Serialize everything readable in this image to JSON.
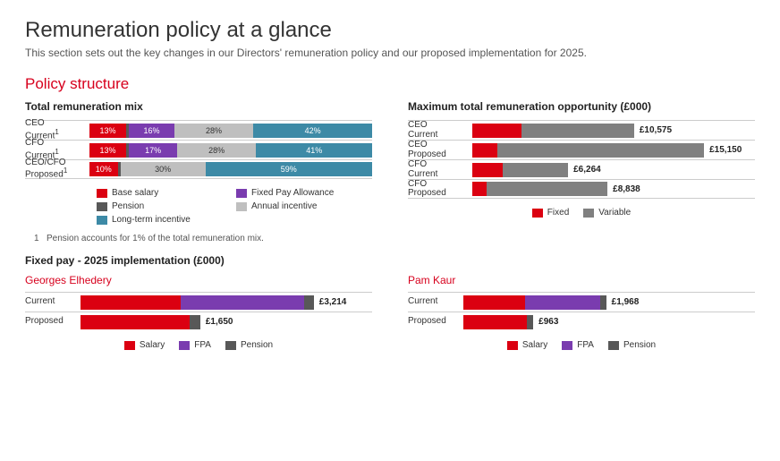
{
  "title": "Remuneration policy at a glance",
  "subtitle": "This section sets out the key changes in our Directors' remuneration policy and our proposed implementation for 2025.",
  "section_heading": "Policy structure",
  "colors": {
    "base_salary": "#db0011",
    "pension": "#585858",
    "fpa": "#7a3caf",
    "annual_incentive": "#bfbfbf",
    "lti": "#3d8aa6",
    "fixed": "#db0011",
    "variable": "#808080"
  },
  "mix_chart": {
    "title": "Total remuneration mix",
    "legend": [
      {
        "label": "Base salary",
        "color": "#db0011"
      },
      {
        "label": "Fixed Pay Allowance",
        "color": "#7a3caf"
      },
      {
        "label": "Pension",
        "color": "#585858"
      },
      {
        "label": "Annual incentive",
        "color": "#bfbfbf"
      },
      {
        "label": "Long-term incentive",
        "color": "#3d8aa6"
      }
    ],
    "rows": [
      {
        "label": "CEO Current",
        "sup": "1",
        "segments": [
          {
            "v": 13,
            "show": "13%",
            "c": "#db0011"
          },
          {
            "v": 1,
            "c": "#585858"
          },
          {
            "v": 16,
            "show": "16%",
            "c": "#7a3caf"
          },
          {
            "v": 28,
            "show": "28%",
            "c": "#bfbfbf",
            "dark": true
          },
          {
            "v": 42,
            "show": "42%",
            "c": "#3d8aa6"
          }
        ]
      },
      {
        "label": "CFO Current",
        "sup": "1",
        "segments": [
          {
            "v": 13,
            "show": "13%",
            "c": "#db0011"
          },
          {
            "v": 1,
            "c": "#585858"
          },
          {
            "v": 17,
            "show": "17%",
            "c": "#7a3caf"
          },
          {
            "v": 28,
            "show": "28%",
            "c": "#bfbfbf",
            "dark": true
          },
          {
            "v": 41,
            "show": "41%",
            "c": "#3d8aa6"
          }
        ]
      },
      {
        "label": "CEO/CFO Proposed",
        "sup": "1",
        "segments": [
          {
            "v": 10,
            "show": "10%",
            "c": "#db0011"
          },
          {
            "v": 1,
            "c": "#585858"
          },
          {
            "v": 30,
            "show": "30%",
            "c": "#bfbfbf",
            "dark": true
          },
          {
            "v": 59,
            "show": "59%",
            "c": "#3d8aa6"
          }
        ]
      }
    ],
    "footnote_num": "1",
    "footnote": "Pension accounts for 1% of the total remuneration mix."
  },
  "max_chart": {
    "title": "Maximum total remuneration opportunity (£000)",
    "max_value": 15150,
    "track_width_pct": 82,
    "legend": [
      {
        "label": "Fixed",
        "color": "#db0011"
      },
      {
        "label": "Variable",
        "color": "#808080"
      }
    ],
    "rows": [
      {
        "label": "CEO Current",
        "fixed": 3214,
        "variable": 7361,
        "total_label": "£10,575"
      },
      {
        "label": "CEO Proposed",
        "fixed": 1650,
        "variable": 13500,
        "total_label": "£15,150"
      },
      {
        "label": "CFO Current",
        "fixed": 1968,
        "variable": 4296,
        "total_label": "£6,264"
      },
      {
        "label": "CFO Proposed",
        "fixed": 963,
        "variable": 7875,
        "total_label": "£8,838"
      }
    ]
  },
  "fixed_pay": {
    "title": "Fixed pay - 2025 implementation (£000)",
    "max_value": 3214,
    "track_width_pct": 80,
    "legend": [
      {
        "label": "Salary",
        "color": "#db0011"
      },
      {
        "label": "FPA",
        "color": "#7a3caf"
      },
      {
        "label": "Pension",
        "color": "#585858"
      }
    ],
    "people": [
      {
        "name": "Georges Elhedery",
        "rows": [
          {
            "label": "Current",
            "salary": 1381,
            "fpa": 1700,
            "pension": 133,
            "total_label": "£3,214"
          },
          {
            "label": "Proposed",
            "salary": 1500,
            "fpa": 0,
            "pension": 150,
            "total_label": "£1,650"
          }
        ]
      },
      {
        "name": "Pam Kaur",
        "rows": [
          {
            "label": "Current",
            "salary": 846,
            "fpa": 1041,
            "pension": 81,
            "total_label": "£1,968"
          },
          {
            "label": "Proposed",
            "salary": 875,
            "fpa": 0,
            "pension": 88,
            "total_label": "£963"
          }
        ]
      }
    ]
  }
}
